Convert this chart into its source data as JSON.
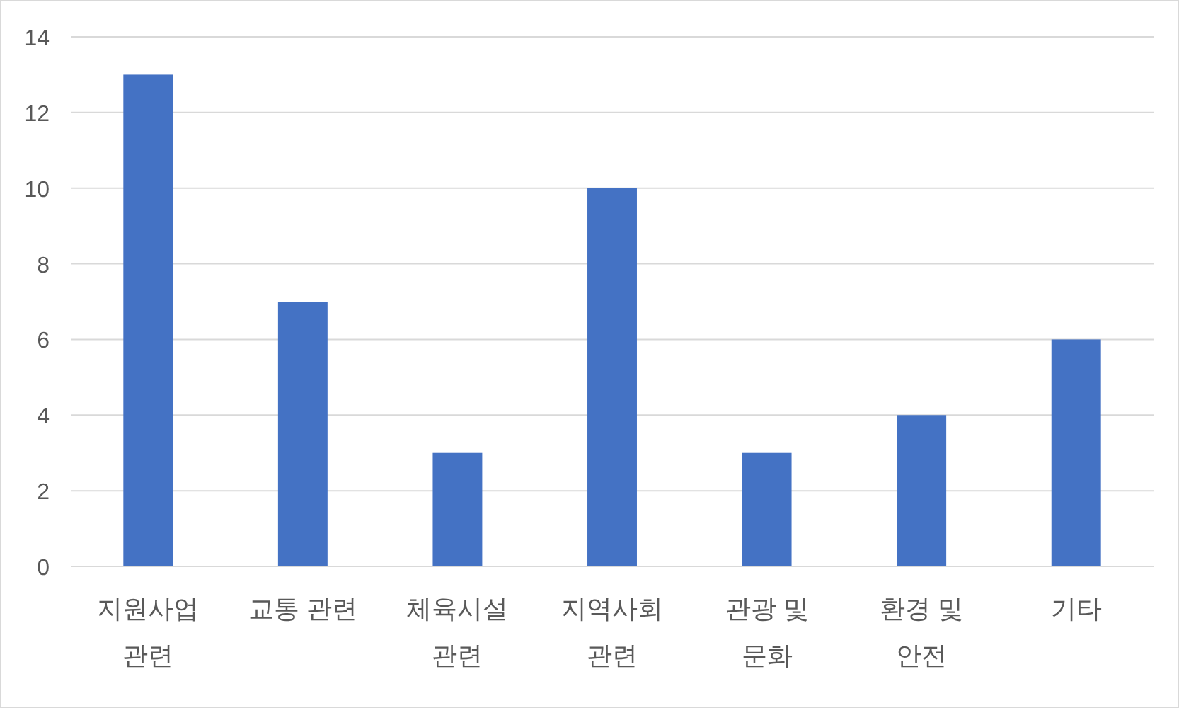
{
  "chart_data": {
    "type": "bar",
    "categories": [
      "지원사업 관련",
      "교통 관련",
      "체육시설 관련",
      "지역사회 관련",
      "관광 및 문화",
      "환경 및 안전",
      "기타"
    ],
    "values": [
      13,
      7,
      3,
      10,
      3,
      4,
      6
    ],
    "color": "#4472c4",
    "ylim": [
      0,
      14
    ],
    "yticks": [
      0,
      2,
      4,
      6,
      8,
      10,
      12,
      14
    ],
    "grid": "y"
  }
}
